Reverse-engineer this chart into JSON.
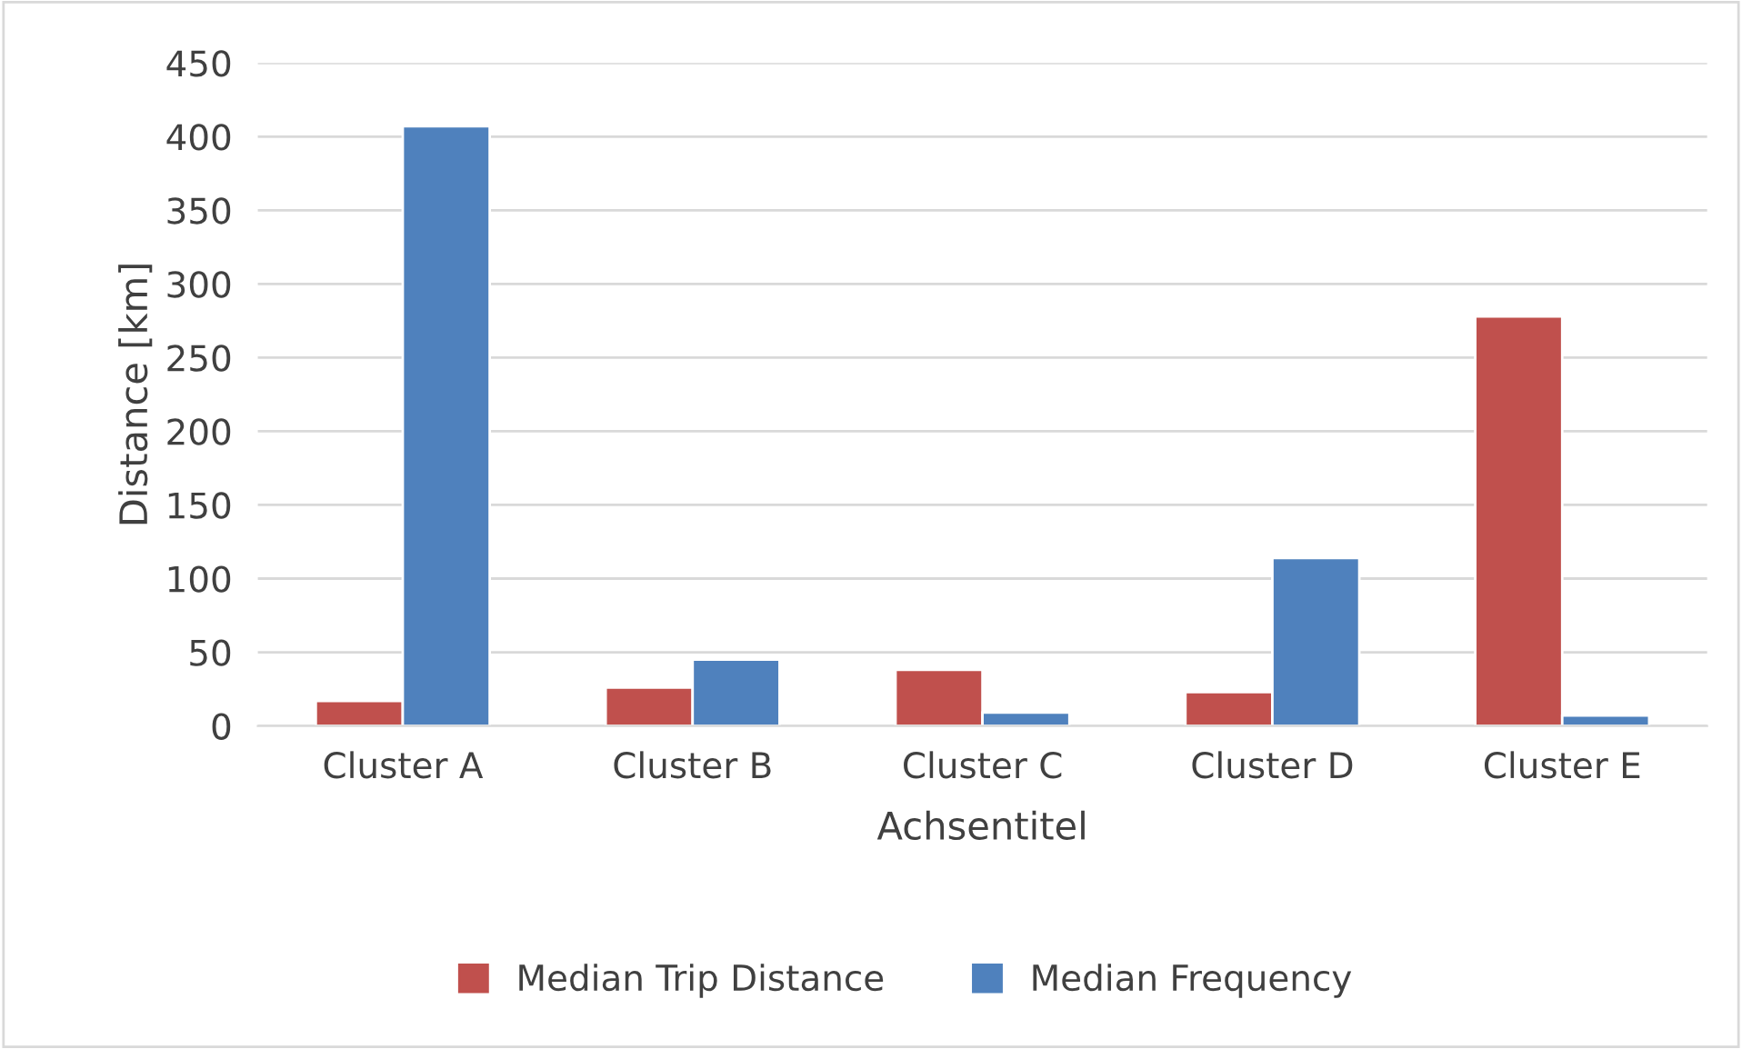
{
  "chart_data": {
    "type": "bar",
    "xlabel": "Achsentitel",
    "ylabel": "Distance [km]",
    "categories": [
      "Cluster A",
      "Cluster B",
      "Cluster C",
      "Cluster D",
      "Cluster E"
    ],
    "series": [
      {
        "name": "Median Trip Distance",
        "color": "#c0504d",
        "values": [
          17,
          26,
          38,
          23,
          278
        ]
      },
      {
        "name": "Median Frequency",
        "color": "#4f81bd",
        "values": [
          407,
          45,
          9,
          114,
          7
        ]
      }
    ],
    "ylim": [
      0,
      450
    ],
    "yticks": [
      0,
      50,
      100,
      150,
      200,
      250,
      300,
      350,
      400,
      450
    ],
    "grid": "y",
    "legend": "bottom"
  }
}
